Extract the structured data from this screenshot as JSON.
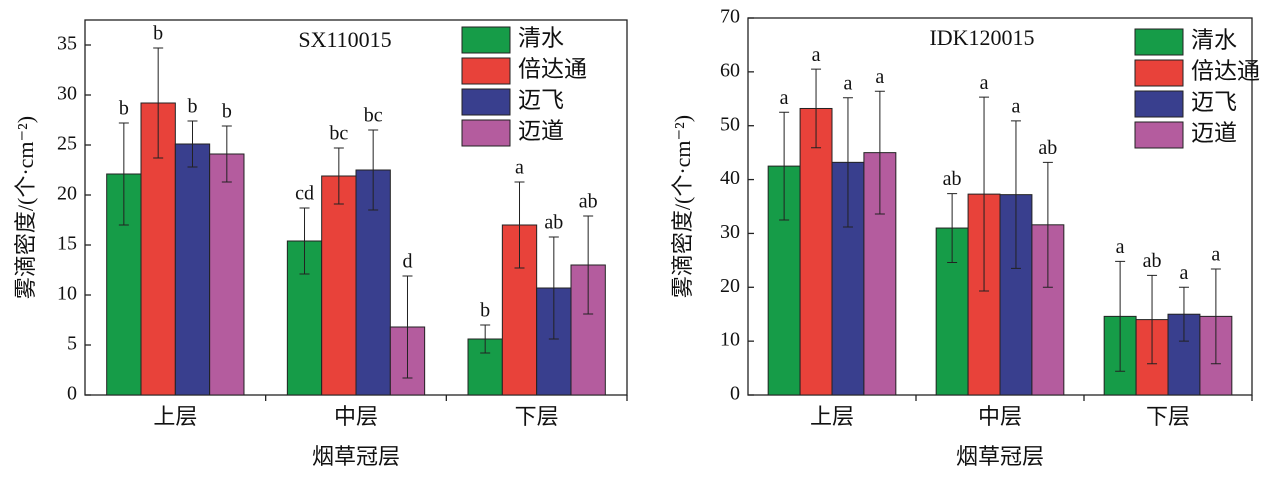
{
  "chart_data": [
    {
      "type": "bar",
      "title": "SX110015",
      "xlabel": "烟草冠层",
      "ylabel": "雾滴密度/(个·cm⁻²)",
      "categories": [
        "上层",
        "中层",
        "下层"
      ],
      "ylim": [
        0,
        37.5
      ],
      "yticks": [
        0,
        5,
        10,
        15,
        20,
        25,
        30,
        35
      ],
      "series": [
        {
          "name": "清水",
          "color": "#169c48",
          "values": [
            22.1,
            15.4,
            5.6
          ],
          "errors": [
            5.1,
            3.3,
            1.4
          ],
          "letters": [
            "b",
            "cd",
            "b"
          ]
        },
        {
          "name": "倍达通",
          "color": "#e8423a",
          "values": [
            29.2,
            21.9,
            17.0
          ],
          "errors": [
            5.5,
            2.8,
            4.3
          ],
          "letters": [
            "b",
            "bc",
            "a"
          ]
        },
        {
          "name": "迈飞",
          "color": "#393f8e",
          "values": [
            25.1,
            22.5,
            10.7
          ],
          "errors": [
            2.3,
            4.0,
            5.1
          ],
          "letters": [
            "b",
            "bc",
            "ab"
          ]
        },
        {
          "name": "迈道",
          "color": "#b45c9e",
          "values": [
            24.1,
            6.8,
            13.0
          ],
          "errors": [
            2.8,
            5.1,
            4.9
          ],
          "letters": [
            "b",
            "d",
            "ab"
          ]
        }
      ]
    },
    {
      "type": "bar",
      "title": "IDK120015",
      "xlabel": "烟草冠层",
      "ylabel": "雾滴密度/(个·cm⁻²)",
      "categories": [
        "上层",
        "中层",
        "下层"
      ],
      "ylim": [
        0,
        70
      ],
      "yticks": [
        0,
        10,
        20,
        30,
        40,
        50,
        60,
        70
      ],
      "series": [
        {
          "name": "清水",
          "color": "#169c48",
          "values": [
            42.5,
            31.0,
            14.6
          ],
          "errors": [
            10.0,
            6.4,
            10.2
          ],
          "letters": [
            "a",
            "ab",
            "a"
          ]
        },
        {
          "name": "倍达通",
          "color": "#e8423a",
          "values": [
            53.2,
            37.3,
            14.0
          ],
          "errors": [
            7.3,
            18.0,
            8.2
          ],
          "letters": [
            "a",
            "a",
            "ab"
          ]
        },
        {
          "name": "迈飞",
          "color": "#393f8e",
          "values": [
            43.2,
            37.2,
            15.0
          ],
          "errors": [
            12.0,
            13.7,
            5.0
          ],
          "letters": [
            "a",
            "a",
            "a"
          ]
        },
        {
          "name": "迈道",
          "color": "#b45c9e",
          "values": [
            45.0,
            31.6,
            14.6
          ],
          "errors": [
            11.4,
            11.6,
            8.8
          ],
          "letters": [
            "a",
            "ab",
            "a"
          ]
        }
      ]
    }
  ]
}
